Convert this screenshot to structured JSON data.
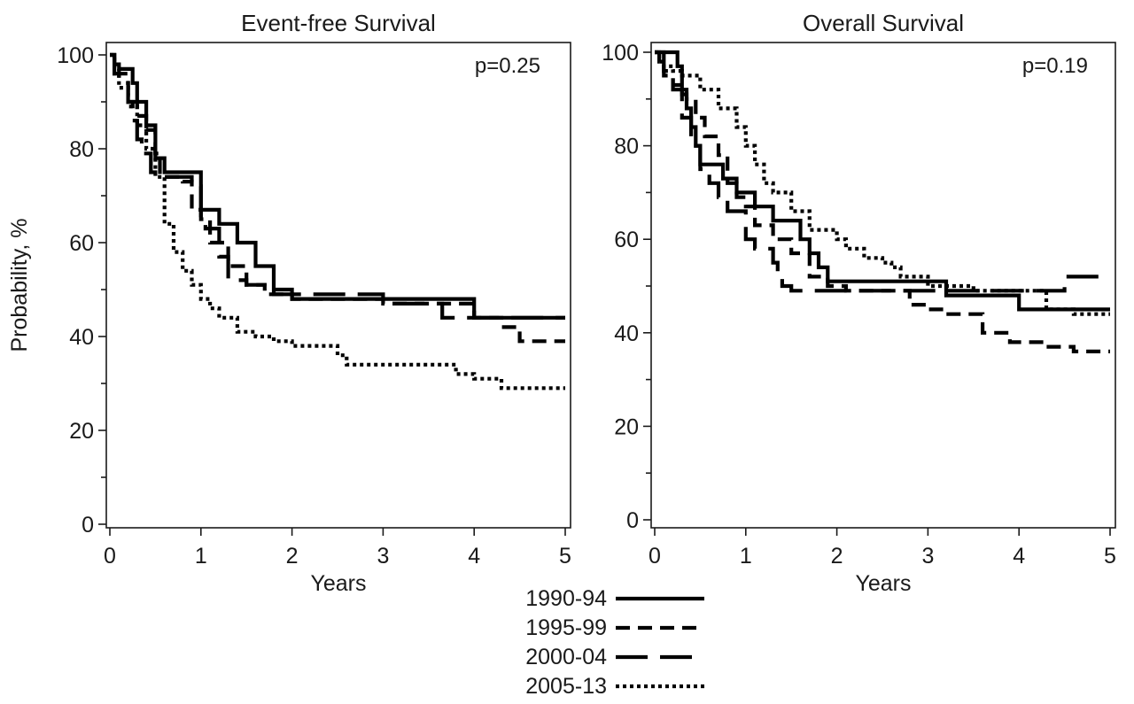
{
  "chart_data": [
    {
      "type": "line",
      "step": true,
      "title": "Event-free Survival",
      "xlabel": "Years",
      "ylabel": "Probability, %",
      "annotation": "p=0.25",
      "xlim": [
        0,
        5
      ],
      "ylim": [
        0,
        100
      ],
      "xticks": [
        0,
        1,
        2,
        3,
        4,
        5
      ],
      "yticks": [
        0,
        20,
        40,
        60,
        80,
        100
      ],
      "grid": false,
      "series": [
        {
          "name": "1990-94",
          "x": [
            0,
            0.05,
            0.1,
            0.25,
            0.3,
            0.4,
            0.5,
            0.6,
            0.95,
            1.0,
            1.2,
            1.4,
            1.6,
            1.8,
            2.0,
            3.0,
            3.95,
            4.0,
            5.0
          ],
          "y": [
            100,
            98,
            97,
            94,
            90,
            85,
            78,
            75,
            75,
            67,
            64,
            60,
            55,
            49,
            48,
            48,
            48,
            44,
            44
          ]
        },
        {
          "name": "1995-99",
          "x": [
            0,
            0.05,
            0.1,
            0.2,
            0.3,
            0.4,
            0.5,
            0.55,
            0.8,
            0.9,
            1.0,
            1.1,
            1.3,
            1.5,
            1.7,
            2.0,
            2.5,
            3.0,
            3.5,
            4.0,
            4.3,
            4.5,
            5.0
          ],
          "y": [
            100,
            97,
            96,
            90,
            87,
            84,
            79,
            74,
            73,
            67,
            65,
            60,
            55,
            51,
            49,
            48,
            48,
            47,
            47,
            44,
            42,
            39,
            39
          ]
        },
        {
          "name": "2000-04",
          "x": [
            0,
            0.05,
            0.1,
            0.2,
            0.25,
            0.3,
            0.35,
            0.45,
            0.5,
            0.8,
            0.9,
            1.0,
            1.05,
            1.2,
            1.3,
            1.5,
            1.7,
            2.0,
            2.5,
            3.0,
            3.5,
            3.65,
            4.0,
            4.5,
            5.0
          ],
          "y": [
            100,
            96,
            94,
            90,
            86,
            82,
            79,
            75,
            74,
            74,
            72,
            64,
            63,
            57,
            52,
            51,
            50,
            49,
            49,
            47,
            47,
            44,
            44,
            44,
            44
          ]
        },
        {
          "name": "2005-13",
          "x": [
            0,
            0.05,
            0.1,
            0.2,
            0.3,
            0.4,
            0.5,
            0.6,
            0.7,
            0.8,
            0.9,
            1.0,
            1.1,
            1.2,
            1.4,
            1.6,
            1.8,
            2.0,
            2.5,
            2.6,
            3.0,
            3.5,
            3.8,
            4.0,
            4.3,
            4.5,
            5.0
          ],
          "y": [
            100,
            96,
            93,
            89,
            85,
            80,
            74,
            64,
            58,
            54,
            51,
            48,
            46,
            44,
            41,
            40,
            39,
            38,
            36,
            34,
            34,
            34,
            32,
            31,
            29,
            29,
            29
          ]
        }
      ]
    },
    {
      "type": "line",
      "step": true,
      "title": "Overall Survival",
      "xlabel": "Years",
      "ylabel": "",
      "annotation": "p=0.19",
      "xlim": [
        0,
        5
      ],
      "ylim": [
        0,
        100
      ],
      "xticks": [
        0,
        1,
        2,
        3,
        4,
        5
      ],
      "yticks": [
        0,
        20,
        40,
        60,
        80,
        100
      ],
      "grid": false,
      "series": [
        {
          "name": "1990-94",
          "x": [
            0,
            0.25,
            0.3,
            0.35,
            0.4,
            0.45,
            0.5,
            0.75,
            0.9,
            1.1,
            1.3,
            1.6,
            1.7,
            1.8,
            1.9,
            3.0,
            3.2,
            3.9,
            4.0,
            5.0
          ],
          "y": [
            100,
            97,
            92,
            88,
            84,
            80,
            76,
            73,
            70,
            67,
            64,
            60,
            57,
            54,
            51,
            51,
            48,
            48,
            45,
            45
          ]
        },
        {
          "name": "1995-99",
          "x": [
            0,
            0.05,
            0.1,
            0.2,
            0.3,
            0.35,
            0.45,
            0.55,
            0.7,
            0.8,
            0.9,
            1.0,
            1.1,
            1.3,
            1.5,
            1.7,
            1.9,
            2.1,
            2.5,
            2.8,
            3.0,
            3.2,
            3.6,
            3.9,
            4.3,
            4.6,
            5.0
          ],
          "y": [
            100,
            98,
            95,
            93,
            91,
            90,
            86,
            82,
            78,
            72,
            69,
            67,
            63,
            60,
            57,
            52,
            50,
            49,
            49,
            46,
            45,
            44,
            40,
            38,
            37,
            36,
            36
          ]
        },
        {
          "name": "2000-04",
          "x": [
            0,
            0.1,
            0.2,
            0.3,
            0.4,
            0.5,
            0.6,
            0.7,
            0.8,
            1.0,
            1.1,
            1.3,
            1.35,
            1.4,
            1.5,
            2.0,
            2.5,
            2.6,
            3.0,
            3.5,
            3.7,
            3.8,
            4.0,
            4.5,
            5.0
          ],
          "y": [
            100,
            96,
            92,
            86,
            80,
            75,
            72,
            69,
            66,
            60,
            58,
            55,
            52,
            50,
            49,
            49,
            49,
            49,
            49,
            49,
            49,
            49,
            49,
            52,
            52
          ]
        },
        {
          "name": "2005-13",
          "x": [
            0,
            0.05,
            0.1,
            0.2,
            0.3,
            0.5,
            0.7,
            0.9,
            1.0,
            1.1,
            1.2,
            1.3,
            1.5,
            1.7,
            2.0,
            2.1,
            2.3,
            2.5,
            2.6,
            2.7,
            3.0,
            3.5,
            4.0,
            4.3,
            4.6,
            5.0
          ],
          "y": [
            100,
            98,
            97,
            96,
            95,
            92,
            88,
            84,
            80,
            76,
            72,
            70,
            66,
            62,
            60,
            58,
            56,
            55,
            54,
            52,
            50,
            49,
            49,
            45,
            44,
            44
          ]
        }
      ]
    }
  ],
  "legend": {
    "placement": "bottom-center",
    "entries": [
      "1990-94",
      "1995-99",
      "2000-04",
      "2005-13"
    ]
  },
  "series_styles": {
    "1990-94": "solid",
    "1995-99": "short-dash",
    "2000-04": "long-dash",
    "2005-13": "dotted"
  }
}
